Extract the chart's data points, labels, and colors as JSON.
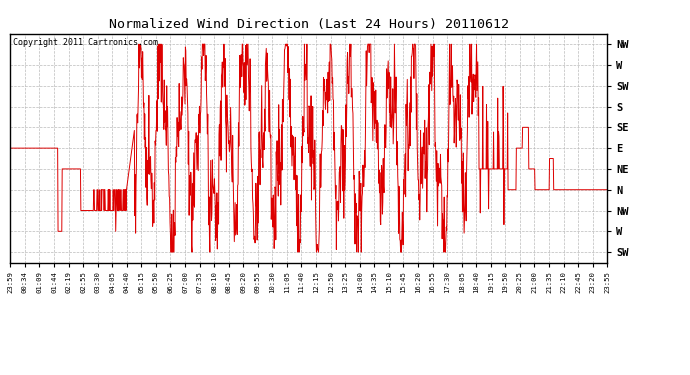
{
  "title": "Normalized Wind Direction (Last 24 Hours) 20110612",
  "copyright": "Copyright 2011 Cartronics.com",
  "line_color": "#dd0000",
  "bg_color": "#ffffff",
  "grid_color": "#bbbbbb",
  "ytick_labels": [
    "NW",
    "W",
    "SW",
    "S",
    "SE",
    "E",
    "NE",
    "N",
    "NW",
    "W",
    "SW"
  ],
  "ytick_values": [
    10,
    9,
    8,
    7,
    6,
    5,
    4,
    3,
    2,
    1,
    0
  ],
  "ylim": [
    -0.5,
    10.5
  ],
  "xtick_labels": [
    "23:59",
    "00:34",
    "01:09",
    "01:44",
    "02:19",
    "02:55",
    "03:30",
    "04:05",
    "04:40",
    "05:15",
    "05:50",
    "06:25",
    "07:00",
    "07:35",
    "08:10",
    "08:45",
    "09:20",
    "09:55",
    "10:30",
    "11:05",
    "11:40",
    "12:15",
    "12:50",
    "13:25",
    "14:00",
    "14:35",
    "15:10",
    "15:45",
    "16:20",
    "16:55",
    "17:30",
    "18:05",
    "18:40",
    "19:15",
    "19:50",
    "20:25",
    "21:00",
    "21:35",
    "22:10",
    "22:45",
    "23:20",
    "23:55"
  ],
  "n_xticks": 42,
  "figsize": [
    6.9,
    3.75
  ],
  "dpi": 100
}
